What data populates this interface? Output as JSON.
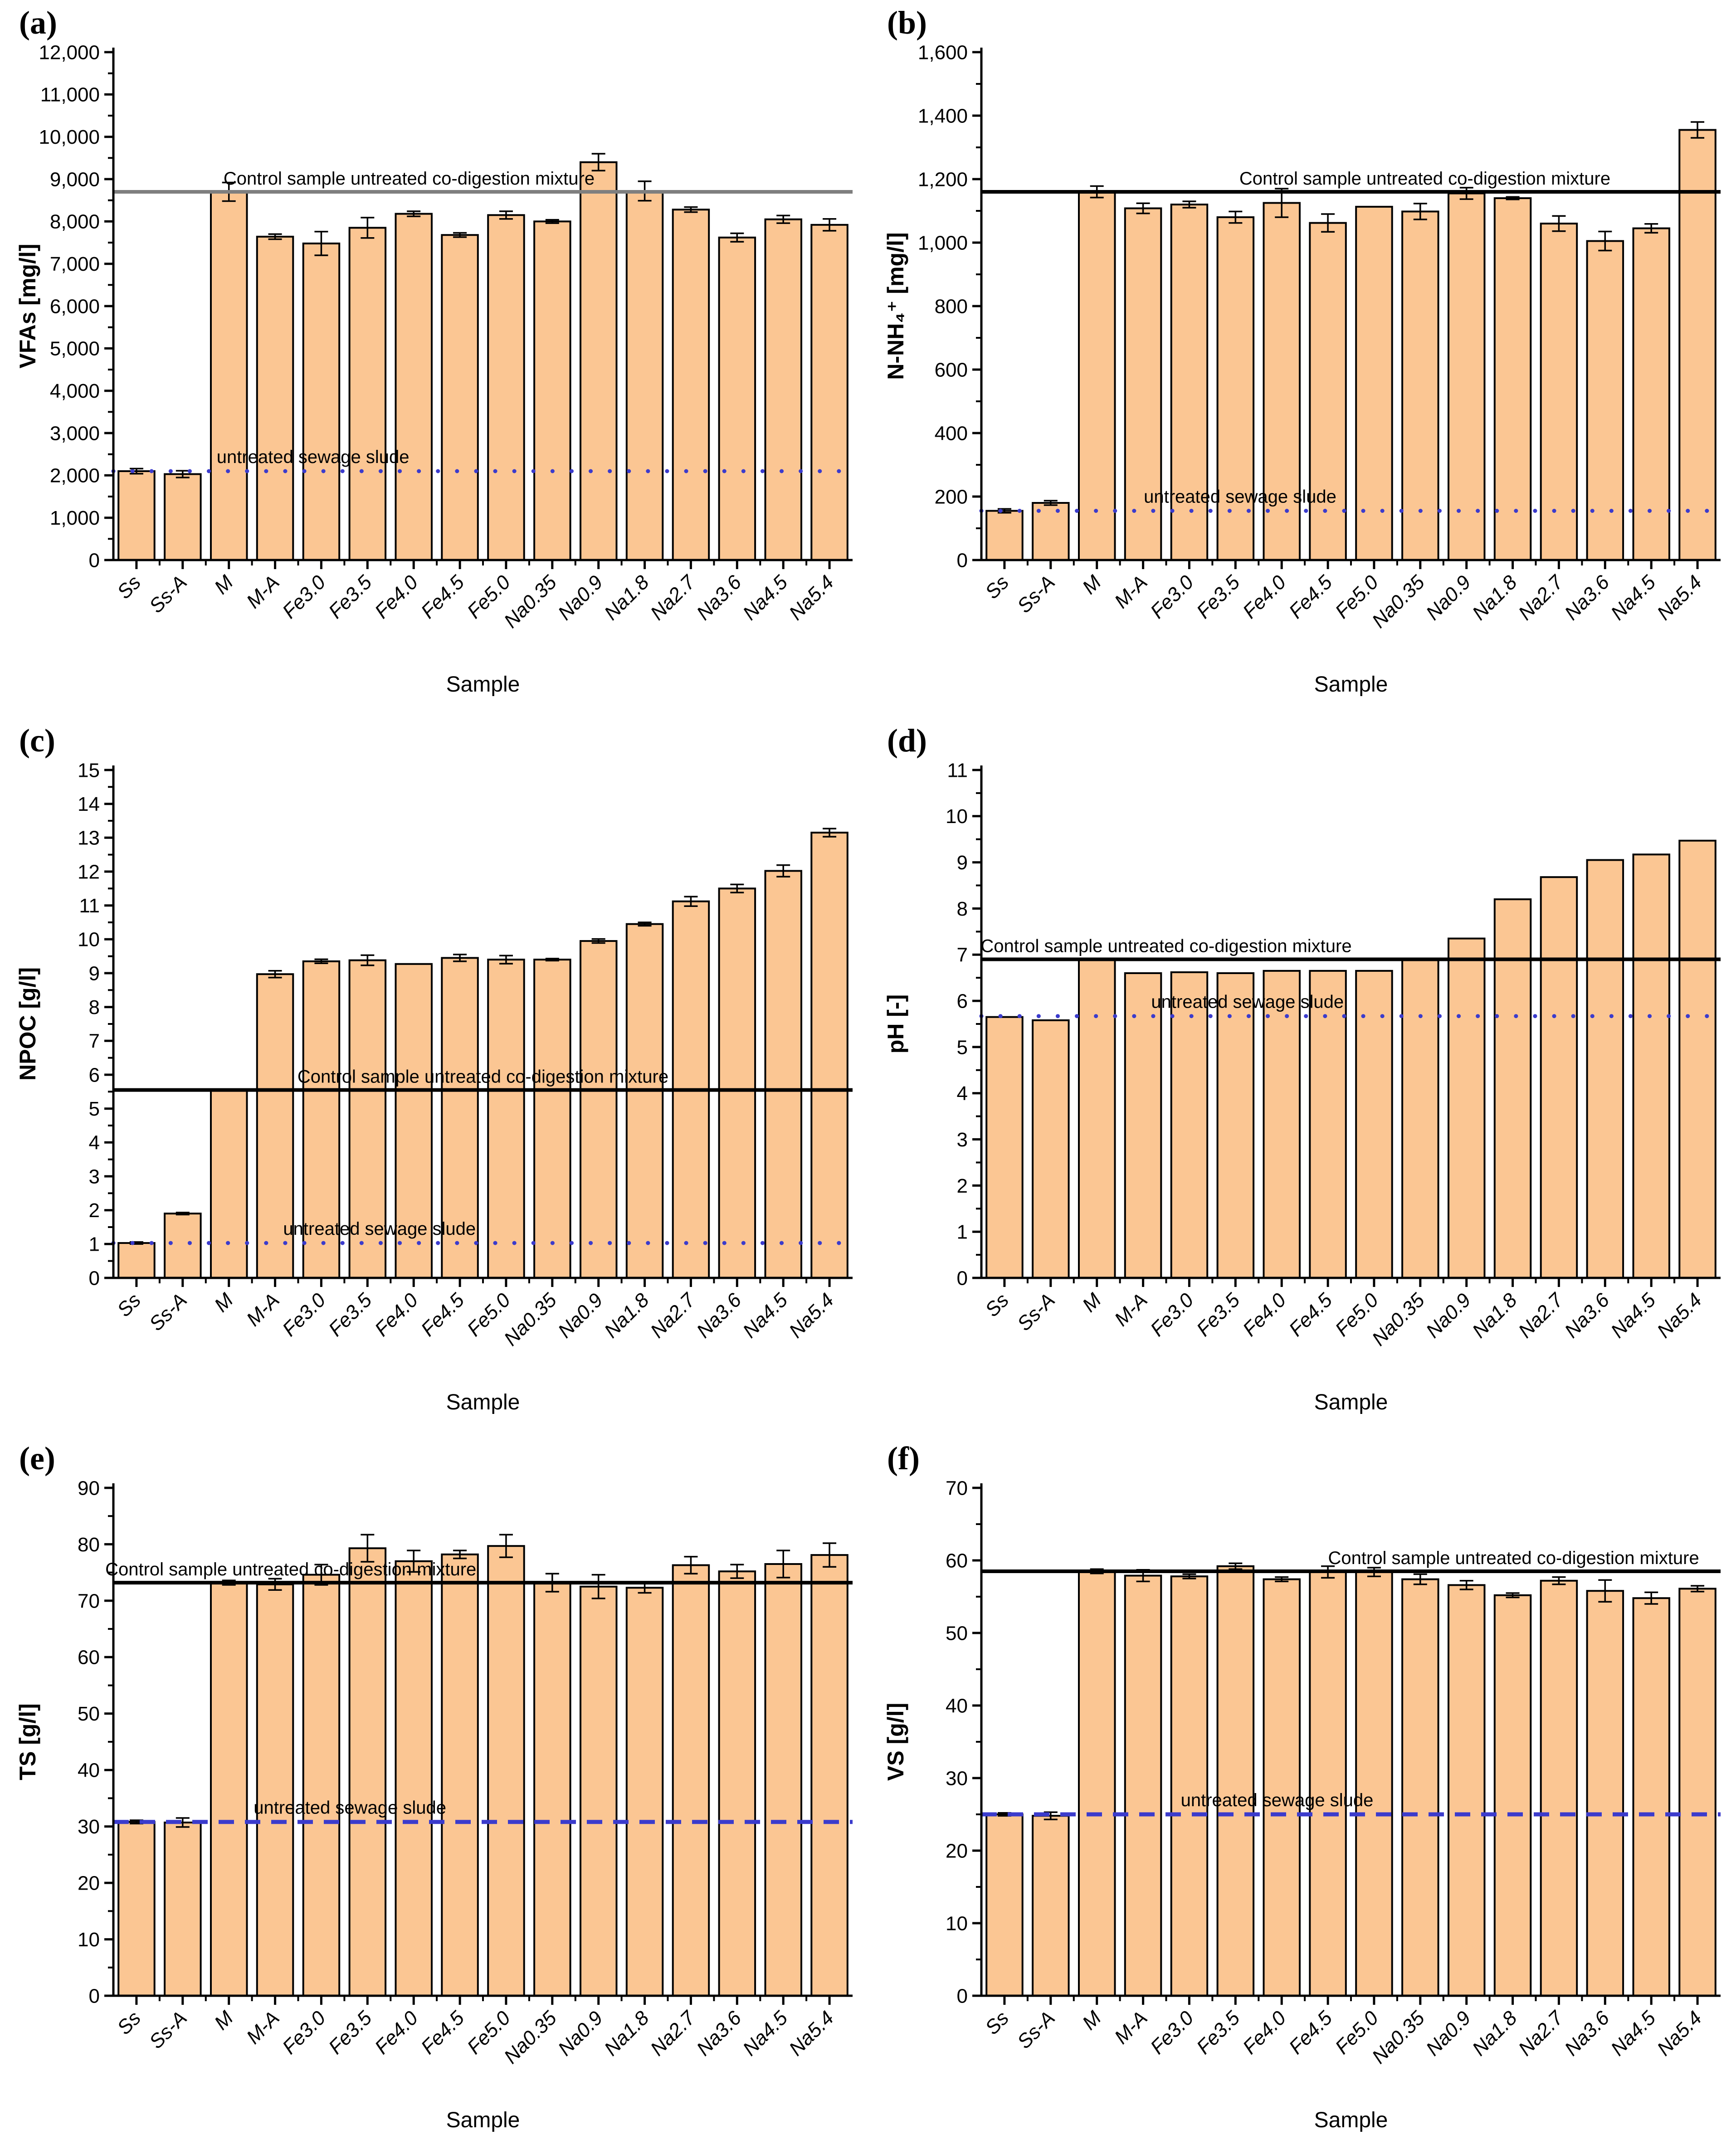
{
  "shared": {
    "xlabel": "Sample",
    "categories": [
      "Ss",
      "Ss-A",
      "M",
      "M-A",
      "Fe3.0",
      "Fe3.5",
      "Fe4.0",
      "Fe4.5",
      "Fe5.0",
      "Na0.35",
      "Na0.9",
      "Na1.8",
      "Na2.7",
      "Na3.6",
      "Na4.5",
      "Na5.4"
    ],
    "control_label": "Control sample untreated co-digestion mixture",
    "reference_label": "untreated sewage slude",
    "bar_fill": "#FBC693",
    "bar_stroke": "#000000",
    "reference_color": "#3B3BCC",
    "axis_color": "#000000"
  },
  "chart_data": [
    {
      "id": "a",
      "panel_label": "(a)",
      "type": "bar",
      "title": "",
      "xlabel": "Sample",
      "ylabel": "VFAs [mg/l]",
      "ylim": [
        0,
        12000
      ],
      "ytick_step": 1000,
      "thousands": true,
      "categories": [
        "Ss",
        "Ss-A",
        "M",
        "M-A",
        "Fe3.0",
        "Fe3.5",
        "Fe4.0",
        "Fe4.5",
        "Fe5.0",
        "Na0.35",
        "Na0.9",
        "Na1.8",
        "Na2.7",
        "Na3.6",
        "Na4.5",
        "Na5.4"
      ],
      "values": [
        2100,
        2030,
        8700,
        7640,
        7480,
        7850,
        8180,
        7680,
        8150,
        8000,
        9400,
        8720,
        8280,
        7620,
        8050,
        7920
      ],
      "errors": [
        60,
        80,
        220,
        60,
        280,
        240,
        60,
        50,
        90,
        40,
        200,
        230,
        60,
        100,
        90,
        140
      ],
      "control_line": {
        "value": 8700,
        "color": "#7F7F7F",
        "label_x": 0.4
      },
      "reference_line": {
        "value": 2100,
        "style": "dotted",
        "label_x": 0.27
      },
      "legend": "none",
      "grid": false
    },
    {
      "id": "b",
      "panel_label": "(b)",
      "type": "bar",
      "title": "",
      "xlabel": "Sample",
      "ylabel": "N-NH₄⁺ [mg/l]",
      "ylim": [
        0,
        1600
      ],
      "ytick_step": 200,
      "thousands": true,
      "categories": [
        "Ss",
        "Ss-A",
        "M",
        "M-A",
        "Fe3.0",
        "Fe3.5",
        "Fe4.0",
        "Fe4.5",
        "Fe5.0",
        "Na0.35",
        "Na0.9",
        "Na1.8",
        "Na2.7",
        "Na3.6",
        "Na4.5",
        "Na5.4"
      ],
      "values": [
        155,
        180,
        1160,
        1108,
        1120,
        1080,
        1125,
        1062,
        1113,
        1098,
        1155,
        1140,
        1060,
        1005,
        1045,
        1355
      ],
      "errors": [
        6,
        7,
        18,
        16,
        10,
        18,
        45,
        28,
        0,
        25,
        18,
        4,
        24,
        30,
        14,
        25
      ],
      "control_line": {
        "value": 1160,
        "color": "#000000",
        "label_x": 0.6
      },
      "reference_line": {
        "value": 155,
        "style": "dotted",
        "label_x": 0.35
      },
      "legend": "none",
      "grid": false
    },
    {
      "id": "c",
      "panel_label": "(c)",
      "type": "bar",
      "title": "",
      "xlabel": "Sample",
      "ylabel": "NPOC [g/l]",
      "ylim": [
        0,
        15
      ],
      "ytick_step": 1,
      "thousands": false,
      "categories": [
        "Ss",
        "Ss-A",
        "M",
        "M-A",
        "Fe3.0",
        "Fe3.5",
        "Fe4.0",
        "Fe4.5",
        "Fe5.0",
        "Na0.35",
        "Na0.9",
        "Na1.8",
        "Na2.7",
        "Na3.6",
        "Na4.5",
        "Na5.4"
      ],
      "values": [
        1.03,
        1.9,
        5.55,
        8.97,
        9.35,
        9.38,
        9.27,
        9.45,
        9.4,
        9.4,
        9.95,
        10.45,
        11.12,
        11.5,
        12.02,
        13.15
      ],
      "errors": [
        0.03,
        0.03,
        0,
        0.1,
        0.06,
        0.15,
        0,
        0.1,
        0.12,
        0.03,
        0.06,
        0.05,
        0.14,
        0.12,
        0.17,
        0.12
      ],
      "control_line": {
        "value": 5.55,
        "color": "#000000",
        "label_x": 0.5
      },
      "reference_line": {
        "value": 1.03,
        "style": "dotted",
        "label_x": 0.36
      },
      "legend": "none",
      "grid": false
    },
    {
      "id": "d",
      "panel_label": "(d)",
      "type": "bar",
      "title": "",
      "xlabel": "Sample",
      "ylabel": "pH [-]",
      "ylim": [
        0,
        11
      ],
      "ytick_step": 1,
      "thousands": false,
      "categories": [
        "Ss",
        "Ss-A",
        "M",
        "M-A",
        "Fe3.0",
        "Fe3.5",
        "Fe4.0",
        "Fe4.5",
        "Fe5.0",
        "Na0.35",
        "Na0.9",
        "Na1.8",
        "Na2.7",
        "Na3.6",
        "Na4.5",
        "Na5.4"
      ],
      "values": [
        5.65,
        5.58,
        6.9,
        6.6,
        6.62,
        6.6,
        6.65,
        6.65,
        6.65,
        6.9,
        7.35,
        8.2,
        8.68,
        9.05,
        9.17,
        9.47
      ],
      "errors": [
        0,
        0,
        0,
        0,
        0,
        0,
        0,
        0,
        0,
        0,
        0,
        0,
        0,
        0,
        0,
        0
      ],
      "control_line": {
        "value": 6.9,
        "color": "#000000",
        "label_x": 0.25
      },
      "reference_line": {
        "value": 5.67,
        "style": "dotted",
        "label_x": 0.36
      },
      "legend": "none",
      "grid": false
    },
    {
      "id": "e",
      "panel_label": "(e)",
      "type": "bar",
      "title": "",
      "xlabel": "Sample",
      "ylabel": "TS [g/l]",
      "ylim": [
        0,
        90
      ],
      "ytick_step": 10,
      "thousands": false,
      "categories": [
        "Ss",
        "Ss-A",
        "M",
        "M-A",
        "Fe3.0",
        "Fe3.5",
        "Fe4.0",
        "Fe4.5",
        "Fe5.0",
        "Na0.35",
        "Na0.9",
        "Na1.8",
        "Na2.7",
        "Na3.6",
        "Na4.5",
        "Na5.4"
      ],
      "values": [
        30.8,
        30.7,
        73.2,
        72.9,
        74.6,
        79.3,
        77.0,
        78.2,
        79.7,
        73.2,
        72.5,
        72.3,
        76.3,
        75.2,
        76.5,
        78.1
      ],
      "errors": [
        0.3,
        0.8,
        0.4,
        1.0,
        1.8,
        2.4,
        1.9,
        0.7,
        2.0,
        1.6,
        2.1,
        0.9,
        1.5,
        1.2,
        2.4,
        2.1
      ],
      "control_line": {
        "value": 73.2,
        "color": "#000000",
        "label_x": 0.24
      },
      "reference_line": {
        "value": 30.8,
        "style": "dashed",
        "label_x": 0.32
      },
      "legend": "none",
      "grid": false
    },
    {
      "id": "f",
      "panel_label": "(f)",
      "type": "bar",
      "title": "",
      "xlabel": "Sample",
      "ylabel": "VS [g/l]",
      "ylim": [
        0,
        70
      ],
      "ytick_step": 10,
      "thousands": false,
      "categories": [
        "Ss",
        "Ss-A",
        "M",
        "M-A",
        "Fe3.0",
        "Fe3.5",
        "Fe4.0",
        "Fe4.5",
        "Fe5.0",
        "Na0.35",
        "Na0.9",
        "Na1.8",
        "Na2.7",
        "Na3.6",
        "Na4.5",
        "Na5.4"
      ],
      "values": [
        25.0,
        24.8,
        58.5,
        57.9,
        57.8,
        59.2,
        57.4,
        58.4,
        58.4,
        57.4,
        56.6,
        55.2,
        57.2,
        55.8,
        54.8,
        56.1
      ],
      "errors": [
        0.2,
        0.5,
        0.3,
        0.8,
        0.3,
        0.4,
        0.3,
        0.8,
        0.6,
        0.7,
        0.6,
        0.3,
        0.5,
        1.5,
        0.8,
        0.4
      ],
      "control_line": {
        "value": 58.5,
        "color": "#000000",
        "label_x": 0.72
      },
      "reference_line": {
        "value": 25.0,
        "style": "dashed",
        "label_x": 0.4
      },
      "legend": "none",
      "grid": false
    }
  ]
}
